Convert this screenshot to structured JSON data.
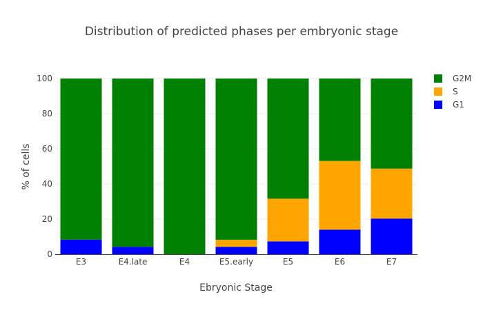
{
  "chart_data": {
    "type": "bar",
    "stacked": true,
    "title": "Distribution of predicted phases per embryonic stage",
    "xlabel": "Ebryonic Stage",
    "ylabel": "% of cells",
    "ylim": [
      0,
      100
    ],
    "yticks": [
      "0",
      "20",
      "40",
      "60",
      "80",
      "100"
    ],
    "grid": true,
    "legend_position": "top-right",
    "categories": [
      "E3",
      "E4.late",
      "E4",
      "E5.early",
      "E5",
      "E6",
      "E7"
    ],
    "series": [
      {
        "name": "G1",
        "color": "#0000ff",
        "values": [
          8.3,
          4.2,
          0,
          4.2,
          7.3,
          14.0,
          20.3
        ]
      },
      {
        "name": "S",
        "color": "#ffa500",
        "values": [
          0,
          0,
          0,
          4.0,
          24.3,
          39.1,
          28.4
        ]
      },
      {
        "name": "G2M",
        "color": "#008000",
        "values": [
          91.7,
          95.8,
          100,
          91.8,
          68.4,
          46.9,
          51.3
        ]
      }
    ],
    "legend_order": [
      "G2M",
      "S",
      "G1"
    ]
  }
}
